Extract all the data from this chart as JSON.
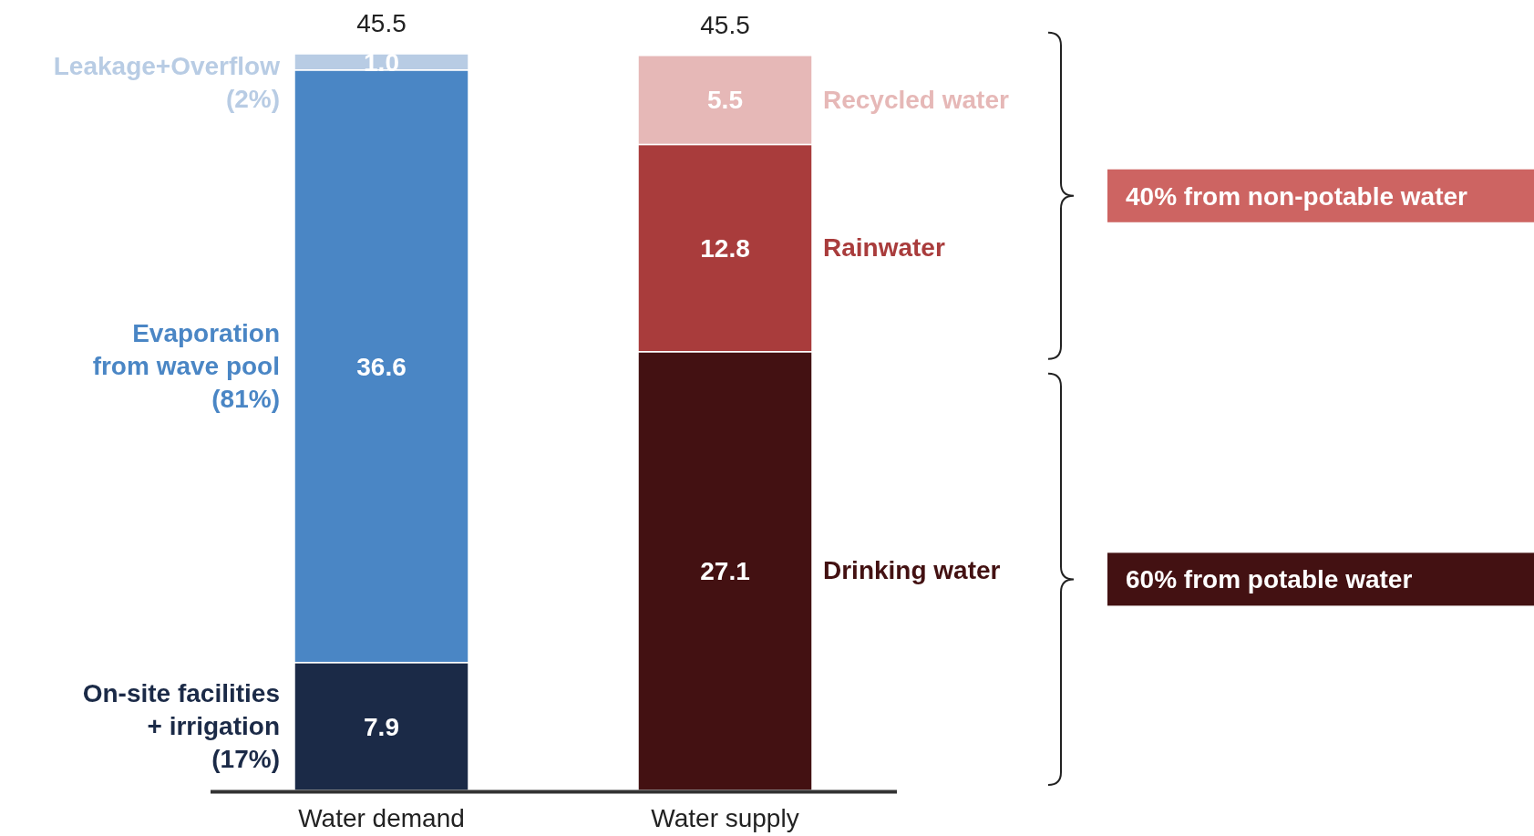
{
  "chart_data": {
    "type": "bar",
    "stacked": true,
    "categories": [
      "Water demand",
      "Water supply"
    ],
    "series": [
      {
        "name": "On-site facilities\n+ irrigation\n(17%)",
        "color": "#1b2a47",
        "values": [
          7.9,
          null
        ],
        "value_labels": [
          "7.9",
          null
        ]
      },
      {
        "name": "Evaporation\nfrom wave pool\n(81%)",
        "color": "#4a86c5",
        "values": [
          36.6,
          null
        ],
        "value_labels": [
          "36.6",
          null
        ]
      },
      {
        "name": "Leakage+Overflow\n(2%)",
        "color": "#b8cce4",
        "values": [
          1.0,
          null
        ],
        "value_labels": [
          "1.0",
          null
        ]
      },
      {
        "name": "Drinking water",
        "color": "#431112",
        "values": [
          null,
          27.1
        ],
        "value_labels": [
          null,
          "27.1"
        ]
      },
      {
        "name": "Rainwater",
        "color": "#a93c3c",
        "values": [
          null,
          12.8
        ],
        "value_labels": [
          null,
          "12.8"
        ]
      },
      {
        "name": "Recycled water",
        "color": "#e6b8b7",
        "values": [
          null,
          5.5
        ],
        "value_labels": [
          null,
          "5.5"
        ]
      }
    ],
    "totals": [
      "45.5",
      "45.5"
    ],
    "annotations": [
      "40% from non-potable water",
      "60% from potable water"
    ]
  }
}
